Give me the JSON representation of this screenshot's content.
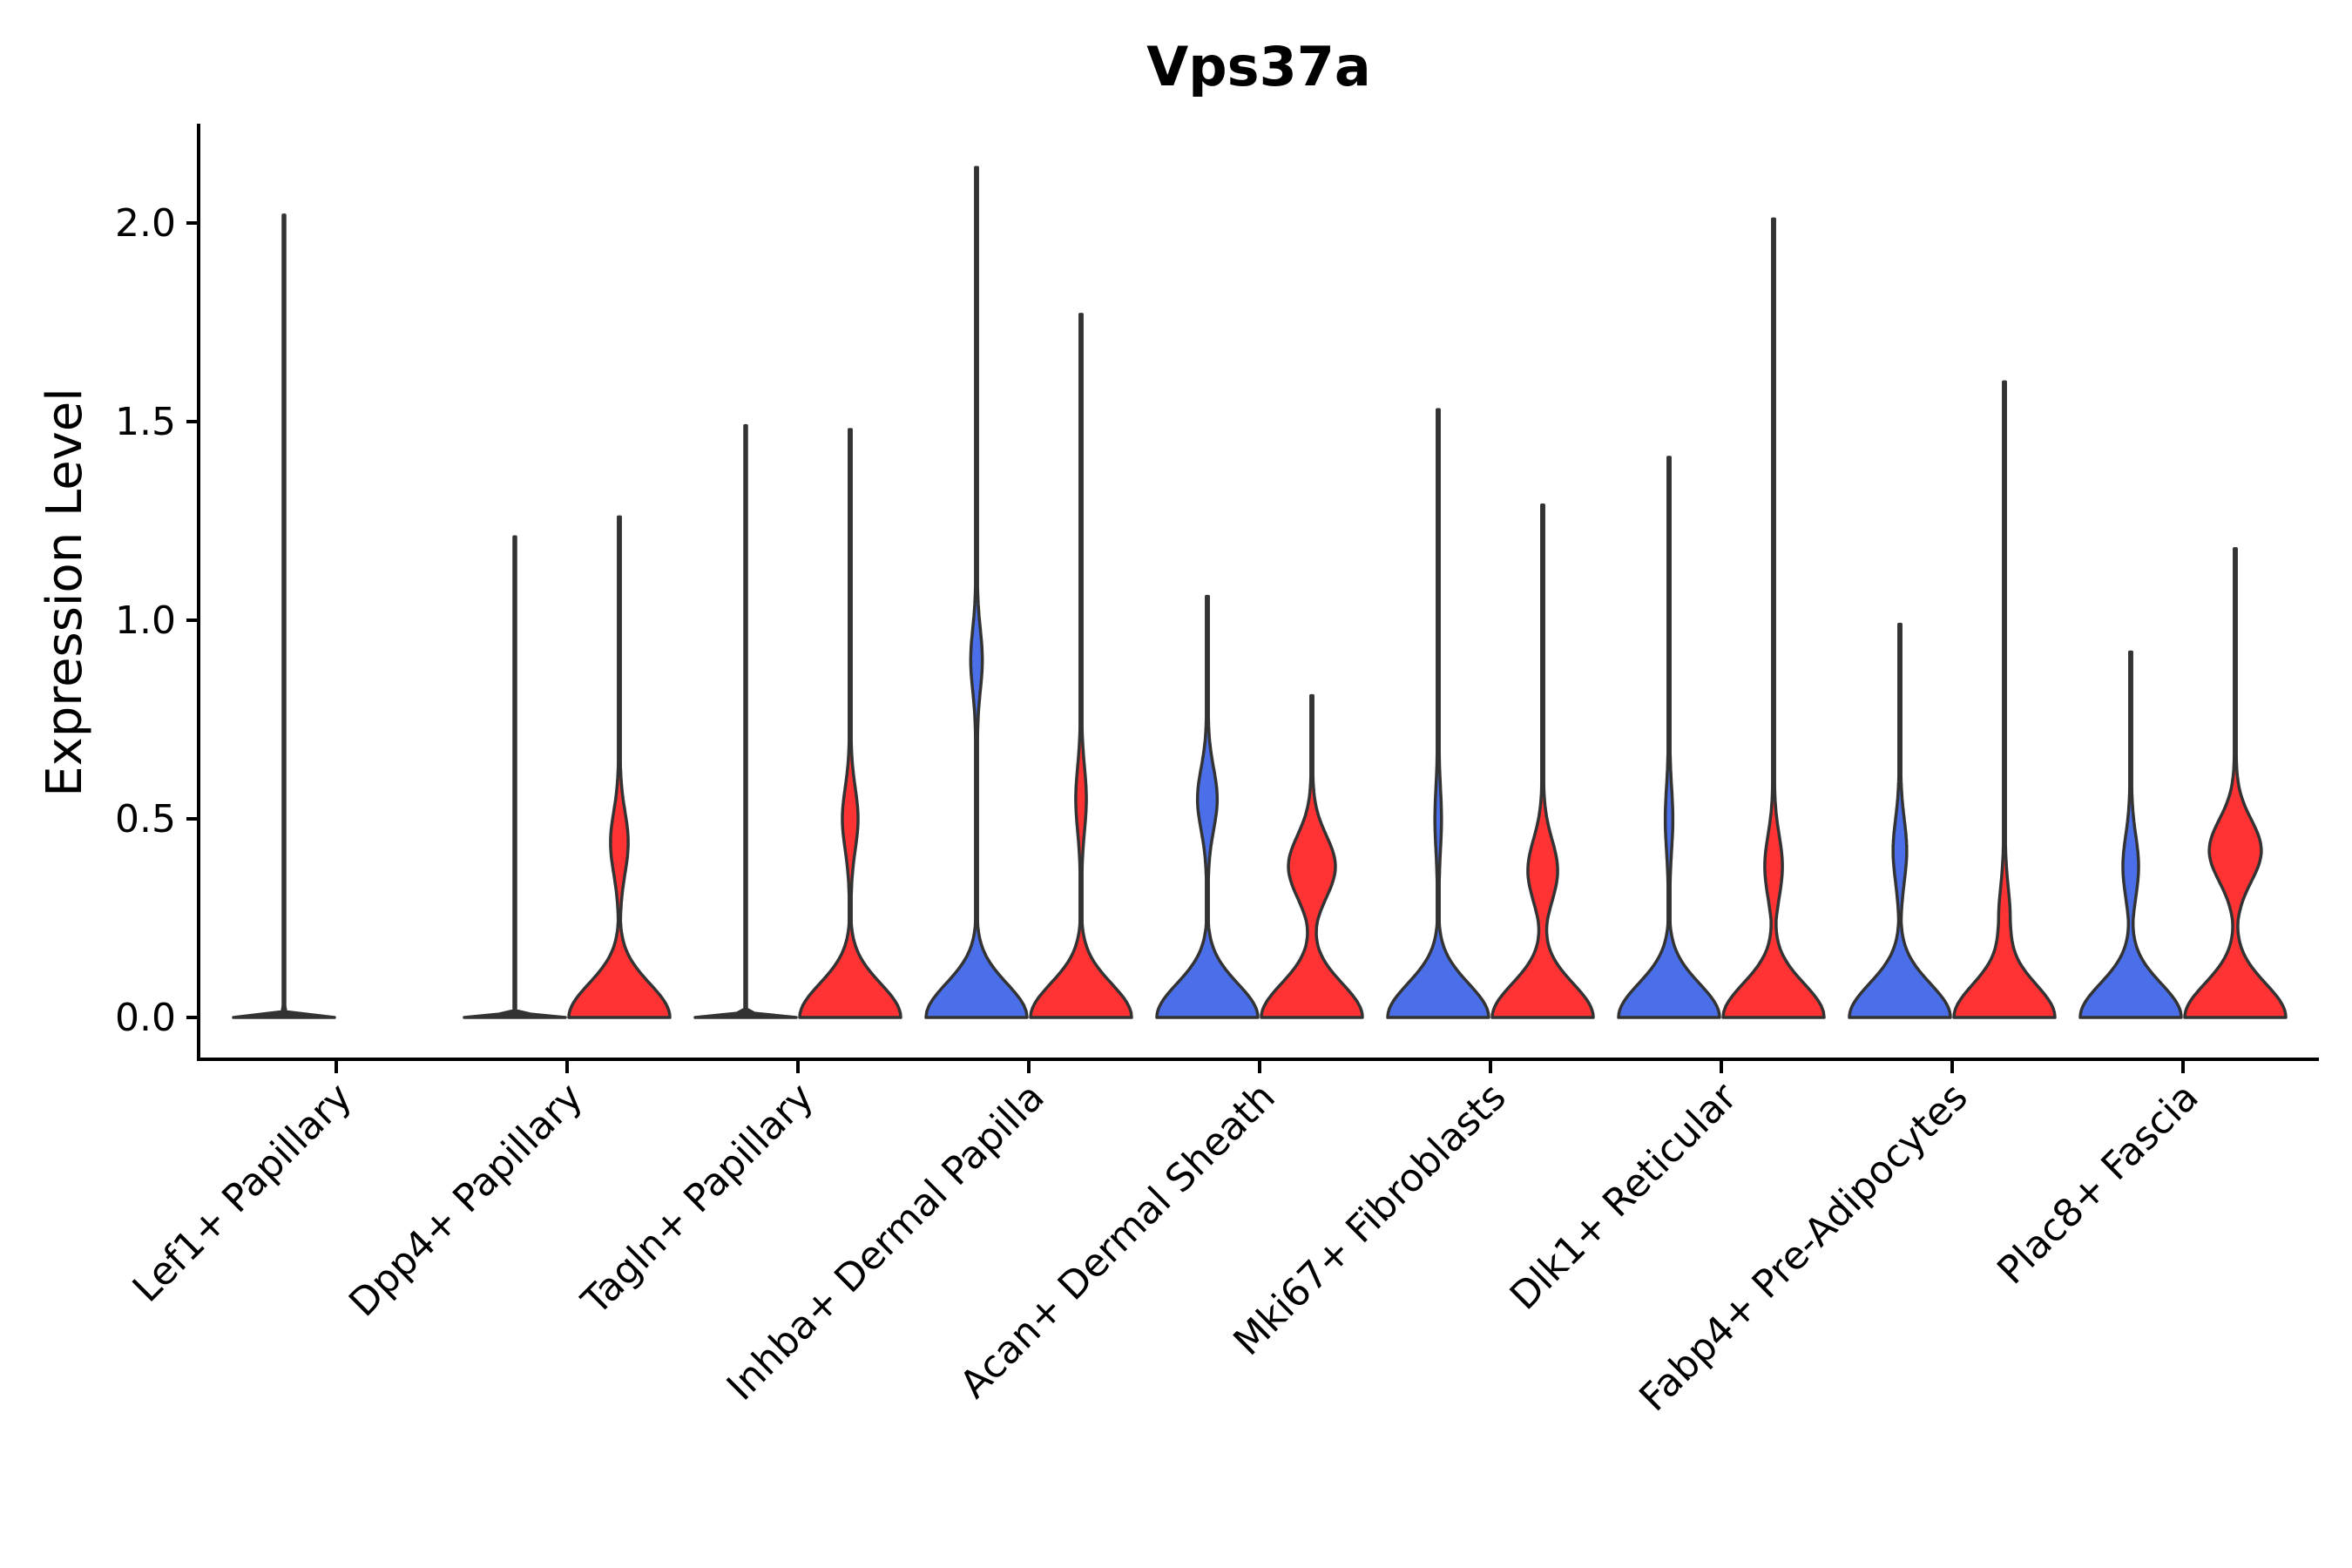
{
  "chart_data": {
    "type": "violin",
    "title": "Vps37a",
    "xlabel": "",
    "ylabel": "Expression Level",
    "ylim": [
      -0.11,
      2.25
    ],
    "yticks": [
      0.0,
      0.5,
      1.0,
      1.5,
      2.0
    ],
    "ytick_labels": [
      "0.0",
      "0.5",
      "1.0",
      "1.5",
      "2.0"
    ],
    "grid": false,
    "legend": "none",
    "categories": [
      "Lef1+ Papillary",
      "Dpp4+ Papillary",
      "Tagln+ Papillary",
      "Inhba+ Dermal Papilla",
      "Acan+ Dermal Sheath",
      "Mki67+ Fibroblasts",
      "Dlk1+ Reticular",
      "Fabp4+ Pre-Adipocytes",
      "Plac8+ Fascia"
    ],
    "series": [
      {
        "name": "blue",
        "color": "#4A6FE8",
        "max": [
          2.02,
          1.21,
          1.49,
          2.14,
          1.06,
          1.53,
          1.41,
          0.99,
          0.92
        ],
        "peak_at_zero": [
          true,
          true,
          true,
          false,
          false,
          false,
          false,
          false,
          false
        ],
        "upper_mode": [
          0.0,
          0.0,
          0.0,
          0.9,
          0.55,
          0.5,
          0.5,
          0.42,
          0.38
        ],
        "upper_mode_strength": [
          0.0,
          0.0,
          0.0,
          0.1,
          0.18,
          0.05,
          0.06,
          0.12,
          0.14
        ]
      },
      {
        "name": "red",
        "color": "#FF3333",
        "max": [
          null,
          1.26,
          1.48,
          1.77,
          0.81,
          1.29,
          2.01,
          1.6,
          1.18
        ],
        "peak_at_zero": [
          false,
          false,
          false,
          false,
          false,
          false,
          false,
          false,
          false
        ],
        "upper_mode": [
          0.0,
          0.44,
          0.5,
          0.55,
          0.38,
          0.37,
          0.38,
          0.25,
          0.42
        ],
        "upper_mode_strength": [
          0.0,
          0.16,
          0.14,
          0.09,
          0.45,
          0.28,
          0.16,
          0.1,
          0.5
        ]
      }
    ]
  }
}
